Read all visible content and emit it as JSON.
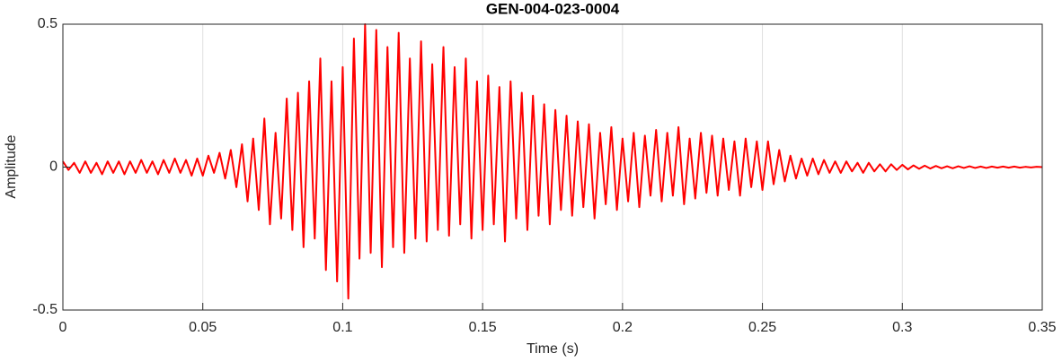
{
  "chart_data": {
    "type": "line",
    "title": "GEN-004-023-0004",
    "x_label": "Time (s)",
    "y_label": "Amplitude",
    "x": [
      0,
      0.002,
      0.004,
      0.006,
      0.008,
      0.01,
      0.012,
      0.014,
      0.016,
      0.018,
      0.02,
      0.022,
      0.024,
      0.026,
      0.028,
      0.03,
      0.032,
      0.034,
      0.036,
      0.038,
      0.04,
      0.042,
      0.044,
      0.046,
      0.048,
      0.05,
      0.052,
      0.054,
      0.056,
      0.058,
      0.06,
      0.062,
      0.064,
      0.066,
      0.068,
      0.07,
      0.072,
      0.074,
      0.076,
      0.078,
      0.08,
      0.082,
      0.084,
      0.086,
      0.088,
      0.09,
      0.092,
      0.094,
      0.096,
      0.098,
      0.1,
      0.102,
      0.104,
      0.106,
      0.108,
      0.11,
      0.112,
      0.114,
      0.116,
      0.118,
      0.12,
      0.122,
      0.124,
      0.126,
      0.128,
      0.13,
      0.132,
      0.134,
      0.136,
      0.138,
      0.14,
      0.142,
      0.144,
      0.146,
      0.148,
      0.15,
      0.152,
      0.154,
      0.156,
      0.158,
      0.16,
      0.162,
      0.164,
      0.166,
      0.168,
      0.17,
      0.172,
      0.174,
      0.176,
      0.178,
      0.18,
      0.182,
      0.184,
      0.186,
      0.188,
      0.19,
      0.192,
      0.194,
      0.196,
      0.198,
      0.2,
      0.202,
      0.204,
      0.206,
      0.208,
      0.21,
      0.212,
      0.214,
      0.216,
      0.218,
      0.22,
      0.222,
      0.224,
      0.226,
      0.228,
      0.23,
      0.232,
      0.234,
      0.236,
      0.238,
      0.24,
      0.242,
      0.244,
      0.246,
      0.248,
      0.25,
      0.252,
      0.254,
      0.256,
      0.258,
      0.26,
      0.262,
      0.264,
      0.266,
      0.268,
      0.27,
      0.272,
      0.274,
      0.276,
      0.278,
      0.28,
      0.282,
      0.284,
      0.286,
      0.288,
      0.29,
      0.292,
      0.294,
      0.296,
      0.298,
      0.3,
      0.302,
      0.304,
      0.306,
      0.308,
      0.31,
      0.312,
      0.314,
      0.316,
      0.318,
      0.32,
      0.322,
      0.324,
      0.326,
      0.328,
      0.33,
      0.332,
      0.334,
      0.336,
      0.338,
      0.34,
      0.342,
      0.344,
      0.346,
      0.348,
      0.35
    ],
    "series": [
      {
        "color": "#ff0000",
        "values": [
          0.02,
          -0.01,
          0.015,
          -0.02,
          0.02,
          -0.02,
          0.015,
          -0.025,
          0.02,
          -0.02,
          0.02,
          -0.025,
          0.02,
          -0.02,
          0.025,
          -0.02,
          0.02,
          -0.025,
          0.025,
          -0.02,
          0.03,
          -0.02,
          0.025,
          -0.03,
          0.03,
          -0.03,
          0.04,
          -0.02,
          0.05,
          -0.04,
          0.06,
          -0.07,
          0.08,
          -0.12,
          0.1,
          -0.15,
          0.17,
          -0.2,
          0.12,
          -0.18,
          0.24,
          -0.22,
          0.26,
          -0.28,
          0.3,
          -0.25,
          0.38,
          -0.36,
          0.3,
          -0.4,
          0.35,
          -0.46,
          0.45,
          -0.32,
          0.5,
          -0.3,
          0.48,
          -0.35,
          0.42,
          -0.28,
          0.47,
          -0.3,
          0.38,
          -0.25,
          0.44,
          -0.26,
          0.36,
          -0.22,
          0.42,
          -0.24,
          0.35,
          -0.2,
          0.38,
          -0.25,
          0.3,
          -0.22,
          0.32,
          -0.2,
          0.28,
          -0.26,
          0.3,
          -0.18,
          0.26,
          -0.22,
          0.25,
          -0.17,
          0.22,
          -0.2,
          0.2,
          -0.15,
          0.18,
          -0.17,
          0.16,
          -0.14,
          0.15,
          -0.18,
          0.12,
          -0.13,
          0.14,
          -0.15,
          0.1,
          -0.12,
          0.12,
          -0.14,
          0.11,
          -0.1,
          0.13,
          -0.12,
          0.12,
          -0.1,
          0.14,
          -0.13,
          0.1,
          -0.11,
          0.12,
          -0.09,
          0.11,
          -0.1,
          0.1,
          -0.08,
          0.09,
          -0.1,
          0.1,
          -0.07,
          0.09,
          -0.08,
          0.09,
          -0.06,
          0.06,
          -0.05,
          0.04,
          -0.04,
          0.03,
          -0.03,
          0.03,
          -0.025,
          0.025,
          -0.02,
          0.02,
          -0.02,
          0.02,
          -0.015,
          0.015,
          -0.02,
          0.015,
          -0.015,
          0.01,
          -0.015,
          0.01,
          -0.01,
          0.008,
          -0.008,
          0.006,
          -0.006,
          0.005,
          -0.005,
          0.004,
          -0.004,
          0.003,
          -0.004,
          0.003,
          -0.003,
          0.003,
          -0.003,
          0.002,
          -0.003,
          0.002,
          -0.002,
          0.002,
          -0.002,
          0.002,
          -0.002,
          0.001,
          -0.001,
          0.001,
          0
        ]
      }
    ],
    "xlim": [
      0,
      0.35
    ],
    "xticks": [
      0,
      0.05,
      0.1,
      0.15,
      0.2,
      0.25,
      0.3,
      0.35
    ],
    "ylim": [
      -0.5,
      0.5
    ],
    "yticks": [
      -0.5,
      0,
      0.5
    ],
    "grid": "x"
  }
}
